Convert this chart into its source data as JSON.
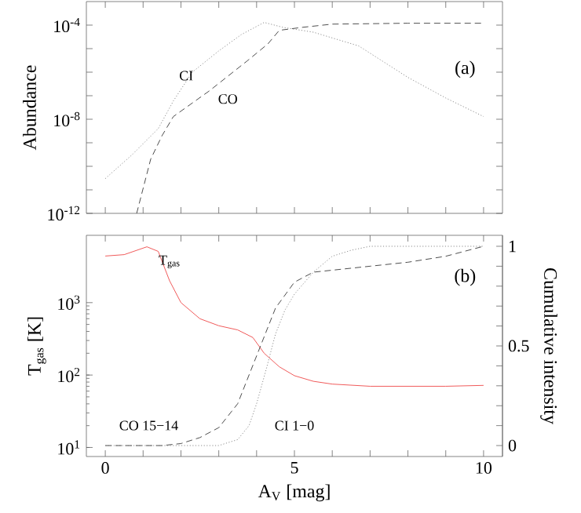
{
  "chart_data": [
    {
      "type": "line",
      "ylabel": "Abundance",
      "log": "y",
      "xlim": [
        -0.5,
        10.5
      ],
      "ylim": [
        1e-12,
        0.001
      ],
      "xticks": [
        0,
        {
          "value": 1,
          "label": null
        },
        {
          "value": 2,
          "label": null
        },
        {
          "value": 3,
          "label": null
        },
        {
          "value": 4,
          "label": null
        },
        5,
        {
          "value": 6,
          "label": null
        },
        {
          "value": 7,
          "label": null
        },
        {
          "value": 8,
          "label": null
        },
        {
          "value": 9,
          "label": null
        },
        10
      ],
      "yticks": [
        {
          "value": 1e-12,
          "label": "10$^{-12}$"
        },
        {
          "value": 1e-11,
          "label": null
        },
        {
          "value": 1e-10,
          "label": null
        },
        {
          "value": 1e-09,
          "label": null
        },
        {
          "value": 1e-08,
          "label": "10$^{-8}$"
        },
        {
          "value": 1e-07,
          "label": null
        },
        {
          "value": 1e-06,
          "label": null
        },
        {
          "value": 1e-05,
          "label": null
        },
        {
          "value": 0.0001,
          "label": "10$^{-4}$"
        }
      ],
      "tick_labels": "y",
      "annotations": [
        "(a)"
      ],
      "series": [
        {
          "name": "CI",
          "color": "#8c8c8c",
          "line_style": "dotted",
          "x": [
            0,
            0.7,
            1.4,
            1.8,
            2.3,
            3.0,
            3.6,
            4.2,
            4.7,
            5.5,
            6.7,
            8.0,
            9.0,
            10
          ],
          "values": [
            3e-11,
            3e-10,
            4e-09,
            6e-08,
            1e-06,
            8e-06,
            4e-05,
            0.00013,
            8e-05,
            5e-05,
            1.3e-05,
            6e-07,
            8e-08,
            1.3e-08
          ]
        },
        {
          "name": "CO",
          "color": "#4d4d4d",
          "line_style": "dashed",
          "x": [
            0.83,
            1.2,
            1.5,
            1.8,
            2.75,
            3.75,
            4.3,
            4.6,
            5.2,
            6.0,
            8.0,
            10
          ],
          "values": [
            1e-12,
            2e-10,
            2e-09,
            1.3e-08,
            1.6e-07,
            3e-06,
            1.6e-05,
            6e-05,
            8e-05,
            0.00011,
            0.00012,
            0.00012
          ]
        }
      ]
    },
    {
      "type": "line",
      "xlabel": "A$_{V}$ [mag]",
      "ylabel": "T$_{gas}$ [K]",
      "y2label": "Cumulative intensity",
      "log": "y",
      "xlim": [
        -0.5,
        10.5
      ],
      "ylim": [
        7.5,
        8500
      ],
      "y2lim": [
        -0.055,
        1.055
      ],
      "xticks": [
        0,
        {
          "value": 1,
          "label": null
        },
        {
          "value": 2,
          "label": null
        },
        {
          "value": 3,
          "label": null
        },
        {
          "value": 4,
          "label": null
        },
        5,
        {
          "value": 6,
          "label": null
        },
        {
          "value": 7,
          "label": null
        },
        {
          "value": 8,
          "label": null
        },
        {
          "value": 9,
          "label": null
        },
        10
      ],
      "yticks": [
        {
          "value": 10,
          "label": "10$^{1}$"
        },
        {
          "value": 100,
          "label": "10$^{2}$"
        },
        {
          "value": 1000,
          "label": "10$^{3}$"
        }
      ],
      "y2ticks": [
        0,
        {
          "value": 0.1,
          "label": null
        },
        {
          "value": 0.2,
          "label": null
        },
        {
          "value": 0.3,
          "label": null
        },
        {
          "value": 0.4,
          "label": null
        },
        0.5,
        {
          "value": 0.6,
          "label": null
        },
        {
          "value": 0.7,
          "label": null
        },
        {
          "value": 0.8,
          "label": null
        },
        {
          "value": 0.9,
          "label": null
        },
        1
      ],
      "annotations": [
        "(b)"
      ],
      "series": [
        {
          "name": "T$_{gas}$",
          "color": "#f05a5a",
          "line_style": "solid",
          "x": [
            0,
            0.5,
            1.1,
            1.4,
            1.7,
            2.0,
            2.5,
            3.0,
            3.5,
            3.9,
            4.2,
            4.6,
            5.0,
            5.5,
            6.0,
            7.0,
            8.0,
            9.0,
            10
          ],
          "values": [
            4400,
            4600,
            5900,
            5100,
            2000,
            1000,
            600,
            480,
            420,
            330,
            200,
            130,
            98,
            82,
            75,
            70,
            70,
            70,
            72
          ]
        },
        {
          "name": "CO 15−14",
          "color": "#4d4d4d",
          "line_style": "dashed",
          "axis": "y2",
          "x": [
            0,
            1.5,
            2.0,
            2.5,
            3.0,
            3.5,
            4.0,
            4.5,
            5.0,
            5.5,
            6.0,
            7.0,
            8.0,
            9.0,
            10
          ],
          "values": [
            0,
            0,
            0.01,
            0.04,
            0.09,
            0.21,
            0.45,
            0.69,
            0.82,
            0.87,
            0.88,
            0.9,
            0.92,
            0.95,
            1.0
          ]
        },
        {
          "name": "CI 1−0",
          "color": "#8c8c8c",
          "line_style": "dotted",
          "axis": "y2",
          "x": [
            0,
            3.0,
            3.5,
            3.8,
            4.0,
            4.25,
            4.5,
            4.75,
            5.0,
            5.5,
            6.0,
            6.5,
            7.0,
            10
          ],
          "values": [
            0,
            0,
            0.03,
            0.1,
            0.21,
            0.38,
            0.56,
            0.68,
            0.76,
            0.87,
            0.95,
            0.98,
            1.0,
            1.0
          ]
        }
      ]
    }
  ]
}
